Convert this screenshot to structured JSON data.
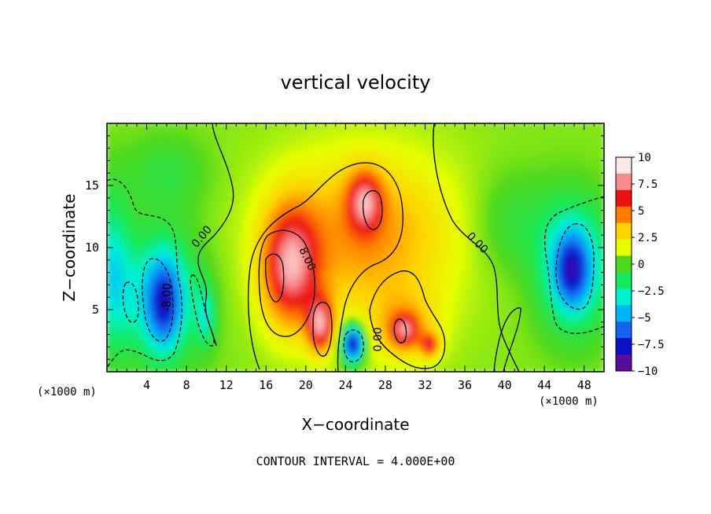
{
  "chart_data": {
    "type": "heatmap",
    "title": "vertical velocity",
    "xlabel": "X−coordinate",
    "ylabel": "Z−coordinate",
    "x_unit": "(×1000 m)",
    "z_unit": "(×1000 m)",
    "xlim": [
      0,
      50
    ],
    "ylim": [
      0,
      20
    ],
    "x_ticks": [
      4,
      8,
      12,
      16,
      20,
      24,
      28,
      32,
      36,
      40,
      44,
      48
    ],
    "y_ticks": [
      5,
      10,
      15
    ],
    "note": "CONTOUR INTERVAL = 4.000E+00",
    "colorbar": {
      "range": [
        -10,
        10
      ],
      "tick_values": [
        10,
        7.5,
        5,
        2.5,
        0,
        -2.5,
        -5,
        -7.5,
        -10
      ],
      "tick_labels": [
        "10",
        "7.5",
        "5",
        "2.5",
        "0",
        "−2.5",
        "−5",
        "−7.5",
        "−10"
      ],
      "colors": [
        "#fce6e6",
        "#f88a8a",
        "#ee1212",
        "#ff7c00",
        "#ffd200",
        "#e6ff00",
        "#4ed81e",
        "#16e85a",
        "#00f0d4",
        "#00b4f8",
        "#1464f0",
        "#0a10c6",
        "#5a0a9e"
      ]
    },
    "contour_levels": [
      -8,
      -4,
      0,
      4,
      8
    ],
    "contour_labels": [
      {
        "text": "0.00",
        "x": 9.5,
        "z": 10.9,
        "angle": -50
      },
      {
        "text": "0.00",
        "x": 37.3,
        "z": 10.4,
        "angle": 45
      },
      {
        "text": "8.00",
        "x": 20.2,
        "z": 9.1,
        "angle": 65
      },
      {
        "text": "0.00",
        "x": 27.2,
        "z": 2.6,
        "angle": -90
      },
      {
        "text": "-8.00",
        "x": 6.0,
        "z": 6.0,
        "angle": -90
      }
    ],
    "field_blobs": [
      {
        "x": 26,
        "z": 11,
        "sx": 9.0,
        "sz": 6.5,
        "a": 4.0
      },
      {
        "x": 18.5,
        "z": 8.5,
        "sx": 2.8,
        "sz": 4.8,
        "a": 7.0
      },
      {
        "x": 21.5,
        "z": 3.8,
        "sx": 1.3,
        "sz": 2.2,
        "a": 7.0
      },
      {
        "x": 26.0,
        "z": 13.8,
        "sx": 1.7,
        "sz": 2.4,
        "a": 5.5
      },
      {
        "x": 30.0,
        "z": 3.5,
        "sx": 3.6,
        "sz": 3.0,
        "a": 2.5
      },
      {
        "x": 30.0,
        "z": 3.4,
        "sx": 1.4,
        "sz": 1.3,
        "a": 5.0
      },
      {
        "x": 32.5,
        "z": 2.2,
        "sx": 0.9,
        "sz": 0.9,
        "a": 5.0
      },
      {
        "x": 24.8,
        "z": 2.3,
        "sx": 1.1,
        "sz": 1.5,
        "a": -10.0
      },
      {
        "x": 5.5,
        "z": 6.0,
        "sx": 3.8,
        "sz": 5.0,
        "a": -5.0
      },
      {
        "x": 5.8,
        "z": 5.5,
        "sx": 1.6,
        "sz": 3.5,
        "a": -4.5
      },
      {
        "x": 0.5,
        "z": 8.0,
        "sx": 2.0,
        "sz": 6.0,
        "a": -4.0
      },
      {
        "x": 47.0,
        "z": 8.5,
        "sx": 3.4,
        "sz": 5.0,
        "a": -5.5
      },
      {
        "x": 46.8,
        "z": 8.2,
        "sx": 1.6,
        "sz": 2.7,
        "a": -4.5
      },
      {
        "x": 10.0,
        "z": 4.5,
        "sx": 1.0,
        "sz": 2.5,
        "a": -3.0
      },
      {
        "x": 41.0,
        "z": 12.0,
        "sx": 4.0,
        "sz": 4.0,
        "a": -1.5
      },
      {
        "x": 6.0,
        "z": 16.0,
        "sx": 4.0,
        "sz": 3.0,
        "a": -1.5
      }
    ]
  }
}
